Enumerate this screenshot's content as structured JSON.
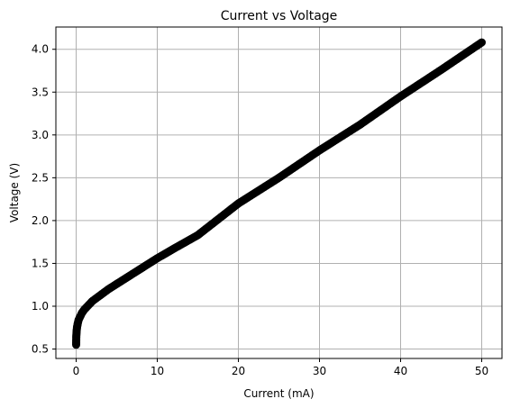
{
  "chart_data": {
    "type": "scatter",
    "title": "Current vs Voltage",
    "xlabel": "Current (mA)",
    "ylabel": "Voltage (V)",
    "xlim": [
      -2.5,
      52.5
    ],
    "ylim": [
      0.39,
      4.26
    ],
    "xticks": [
      0,
      10,
      20,
      30,
      40,
      50
    ],
    "yticks": [
      0.5,
      1.0,
      1.5,
      2.0,
      2.5,
      3.0,
      3.5,
      4.0
    ],
    "xtick_labels": [
      "0",
      "10",
      "20",
      "30",
      "40",
      "50"
    ],
    "ytick_labels": [
      "0.5",
      "1.0",
      "1.5",
      "2.0",
      "2.5",
      "3.0",
      "3.5",
      "4.0"
    ],
    "grid": true,
    "series": [
      {
        "marker": "circle",
        "color": "#000000",
        "x": [
          0,
          0.02,
          0.05,
          0.1,
          0.2,
          0.3,
          0.5,
          0.7,
          1,
          1.5,
          2,
          3,
          4,
          5,
          6,
          8,
          10,
          12,
          15,
          20,
          25,
          30,
          35,
          40,
          45,
          50
        ],
        "y": [
          0.55,
          0.65,
          0.7,
          0.75,
          0.8,
          0.84,
          0.88,
          0.92,
          0.96,
          1.01,
          1.06,
          1.13,
          1.2,
          1.26,
          1.32,
          1.44,
          1.56,
          1.67,
          1.83,
          2.2,
          2.5,
          2.82,
          3.12,
          3.45,
          3.76,
          4.08
        ]
      }
    ]
  }
}
